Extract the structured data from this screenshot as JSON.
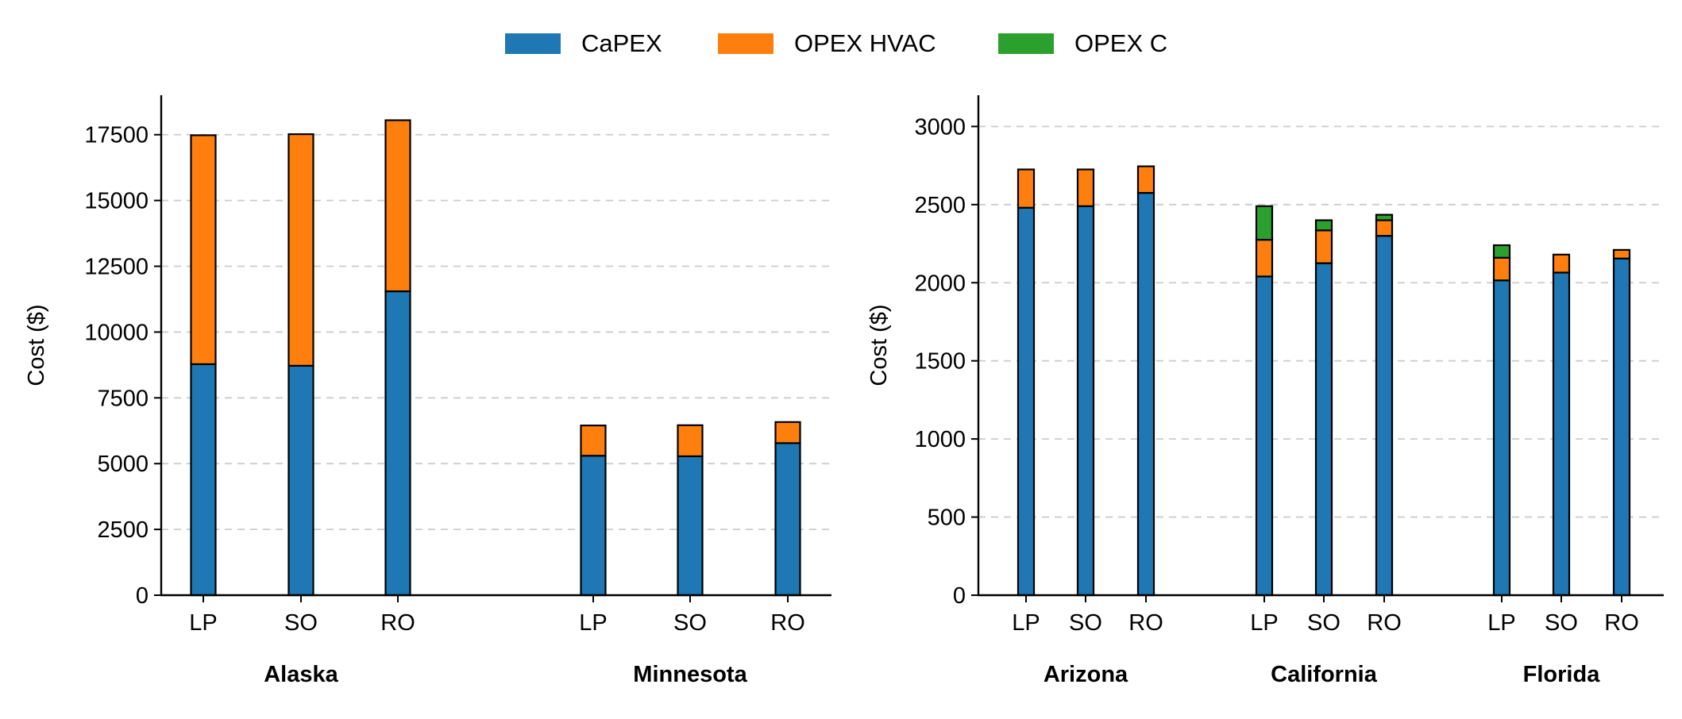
{
  "legend": {
    "placement": "top-center",
    "items": [
      {
        "label": "CaPEX",
        "color": "#1f77b4"
      },
      {
        "label": "OPEX HVAC",
        "color": "#ff7f0e"
      },
      {
        "label": "OPEX C",
        "color": "#2ca02c"
      }
    ]
  },
  "chart_data": [
    {
      "type": "bar",
      "stacked": true,
      "ylabel": "Cost ($)",
      "ylim": [
        0,
        19000
      ],
      "yticks": [
        0,
        2500,
        5000,
        7500,
        10000,
        12500,
        15000,
        17500
      ],
      "grid": "y-dashed",
      "groups": [
        {
          "name": "Alaska",
          "categories": [
            "LP",
            "SO",
            "RO"
          ]
        },
        {
          "name": "Minnesota",
          "categories": [
            "LP",
            "SO",
            "RO"
          ]
        }
      ],
      "series": [
        {
          "name": "CaPEX",
          "color": "#1f77b4",
          "values": [
            8780,
            8720,
            11550,
            5300,
            5280,
            5780
          ]
        },
        {
          "name": "OPEX HVAC",
          "color": "#ff7f0e",
          "values": [
            8700,
            8800,
            6500,
            1150,
            1180,
            800
          ]
        },
        {
          "name": "OPEX C",
          "color": "#2ca02c",
          "values": [
            0,
            0,
            0,
            0,
            0,
            0
          ]
        }
      ]
    },
    {
      "type": "bar",
      "stacked": true,
      "ylabel": "Cost ($)",
      "ylim": [
        0,
        3200
      ],
      "yticks": [
        0,
        500,
        1000,
        1500,
        2000,
        2500,
        3000
      ],
      "grid": "y-dashed",
      "groups": [
        {
          "name": "Arizona",
          "categories": [
            "LP",
            "SO",
            "RO"
          ]
        },
        {
          "name": "California",
          "categories": [
            "LP",
            "SO",
            "RO"
          ]
        },
        {
          "name": "Florida",
          "categories": [
            "LP",
            "SO",
            "RO"
          ]
        }
      ],
      "series": [
        {
          "name": "CaPEX",
          "color": "#1f77b4",
          "values": [
            2480,
            2490,
            2575,
            2040,
            2125,
            2300,
            2015,
            2065,
            2155
          ]
        },
        {
          "name": "OPEX HVAC",
          "color": "#ff7f0e",
          "values": [
            245,
            235,
            170,
            235,
            210,
            100,
            145,
            115,
            55
          ]
        },
        {
          "name": "OPEX C",
          "color": "#2ca02c",
          "values": [
            0,
            0,
            0,
            215,
            65,
            35,
            80,
            0,
            0
          ]
        }
      ]
    }
  ]
}
